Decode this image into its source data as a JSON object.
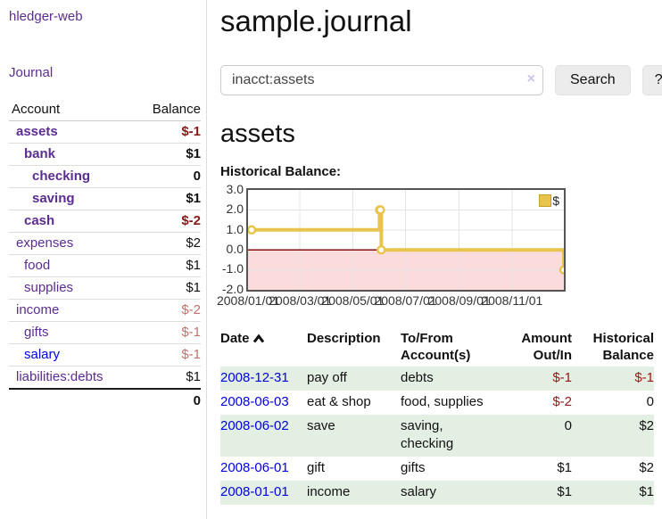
{
  "colors": {
    "link_purple": "#5c2d91",
    "link_blue": "#0000e0",
    "negative_strong": "#8b1616",
    "negative_soft": "#c1716d",
    "row_shade_green": "#e3efe3",
    "chart_line_gold": "#e9c44d",
    "chart_negative_fill": "#fbdbdb",
    "chart_zero_line": "#871111"
  },
  "sidebar": {
    "brand": "hledger-web",
    "journal_link": "Journal",
    "account_header": "Account",
    "balance_header": "Balance",
    "accounts": [
      {
        "name": "assets",
        "balance": "$-1",
        "indent": 0,
        "strong": true,
        "negative": "strong"
      },
      {
        "name": "bank",
        "balance": "$1",
        "indent": 1,
        "strong": true
      },
      {
        "name": "checking",
        "balance": "0",
        "indent": 2,
        "strong": true
      },
      {
        "name": "saving",
        "balance": "$1",
        "indent": 2,
        "strong": true
      },
      {
        "name": "cash",
        "balance": "$-2",
        "indent": 1,
        "strong": true,
        "negative": "strong"
      },
      {
        "name": "expenses",
        "balance": "$2",
        "indent": 0
      },
      {
        "name": "food",
        "balance": "$1",
        "indent": 1
      },
      {
        "name": "supplies",
        "balance": "$1",
        "indent": 1
      },
      {
        "name": "income",
        "balance": "$-2",
        "indent": 0,
        "negative": "soft"
      },
      {
        "name": "gifts",
        "balance": "$-1",
        "indent": 1,
        "negative": "soft"
      },
      {
        "name": "salary",
        "balance": "$-1",
        "indent": 1,
        "negative": "soft",
        "link_color": "blue"
      },
      {
        "name": "liabilities:debts",
        "balance": "$1",
        "indent": 0
      }
    ],
    "total": "0"
  },
  "header": {
    "title": "sample.journal"
  },
  "search": {
    "value": "inacct:assets",
    "clear_icon": "×",
    "button_label": "Search",
    "help_label": "?"
  },
  "account_page": {
    "heading": "assets",
    "chart_label": "Historical Balance:"
  },
  "chart_data": {
    "type": "line",
    "step": true,
    "title": "Historical Balance:",
    "series": [
      {
        "name": "$",
        "color": "#e9c44d",
        "marker_fill": "#ffffff",
        "points": [
          [
            "2008-01-01",
            1
          ],
          [
            "2008-06-01",
            2
          ],
          [
            "2008-06-02",
            2
          ],
          [
            "2008-06-03",
            0
          ],
          [
            "2008-12-31",
            -1
          ]
        ]
      }
    ],
    "x_range": [
      "2008-01-01",
      "2008-12-31"
    ],
    "ylim": [
      -2,
      3
    ],
    "y_ticks": [
      "3.0",
      "2.0",
      "1.0",
      "0.0",
      "-1.0",
      "-2.0"
    ],
    "x_ticks": [
      "2008/01/01",
      "2008/03/01",
      "2008/05/01",
      "2008/07/01",
      "2008/09/01",
      "2008/11/01"
    ],
    "grid": true,
    "legend": {
      "label": "$",
      "position": "top-right"
    },
    "negative_fill": "#fbdbdb",
    "zero_line_color": "#871111"
  },
  "register": {
    "headers": {
      "date": "Date",
      "description": "Description",
      "accounts": "To/From\nAccount(s)",
      "amount": "Amount\nOut/In",
      "balance": "Historical\nBalance"
    },
    "rows": [
      {
        "date": "2008-12-31",
        "description": "pay off",
        "accounts": "debts",
        "amount": "$-1",
        "balance": "$-1",
        "amount_negative": true,
        "balance_negative": true,
        "shaded": true
      },
      {
        "date": "2008-06-03",
        "description": "eat & shop",
        "accounts": "food, supplies",
        "amount": "$-2",
        "balance": "0",
        "amount_negative": true,
        "balance_negative": false,
        "shaded": false
      },
      {
        "date": "2008-06-02",
        "description": "save",
        "accounts": "saving,\nchecking",
        "amount": "0",
        "balance": "$2",
        "amount_negative": false,
        "balance_negative": false,
        "shaded": true
      },
      {
        "date": "2008-06-01",
        "description": "gift",
        "accounts": "gifts",
        "amount": "$1",
        "balance": "$2",
        "amount_negative": false,
        "balance_negative": false,
        "shaded": false
      },
      {
        "date": "2008-01-01",
        "description": "income",
        "accounts": "salary",
        "amount": "$1",
        "balance": "$1",
        "amount_negative": false,
        "balance_negative": false,
        "shaded": true
      }
    ]
  }
}
